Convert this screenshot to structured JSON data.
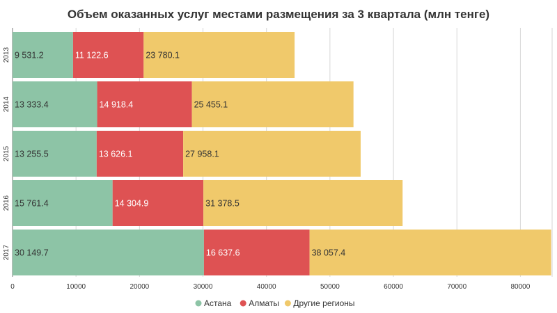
{
  "chart_data": {
    "type": "bar",
    "orientation": "horizontal",
    "stacked": true,
    "title": "Объем оказанных услуг местами размещения за 3 квартала (млн тенге)",
    "categories": [
      "2013",
      "2014",
      "2015",
      "2016",
      "2017"
    ],
    "series": [
      {
        "name": "Астана",
        "color": "#8dc4a6",
        "label_color": "#333333",
        "values": [
          9531.2,
          13333.4,
          13255.5,
          15761.4,
          30149.7
        ],
        "labels": [
          "9 531.2",
          "13 333.4",
          "13 255.5",
          "15 761.4",
          "30 149.7"
        ]
      },
      {
        "name": "Алматы",
        "color": "#de5253",
        "label_color": "#ffffff",
        "values": [
          11122.6,
          14918.4,
          13626.1,
          14304.9,
          16637.6
        ],
        "labels": [
          "11 122.6",
          "14 918.4",
          "13 626.1",
          "14 304.9",
          "16 637.6"
        ]
      },
      {
        "name": "Другие регионы",
        "color": "#f0c96b",
        "label_color": "#333333",
        "values": [
          23780.1,
          25455.1,
          27958.1,
          31378.5,
          38057.4
        ],
        "labels": [
          "23 780.1",
          "25 455.1",
          "27 958.1",
          "31 378.5",
          "38 057.4"
        ]
      }
    ],
    "x_ticks": [
      "0",
      "10000",
      "20000",
      "30000",
      "40000",
      "50000",
      "60000",
      "70000",
      "80000"
    ],
    "xlim": [
      0,
      85000
    ],
    "grid": true,
    "legend_position": "bottom"
  }
}
